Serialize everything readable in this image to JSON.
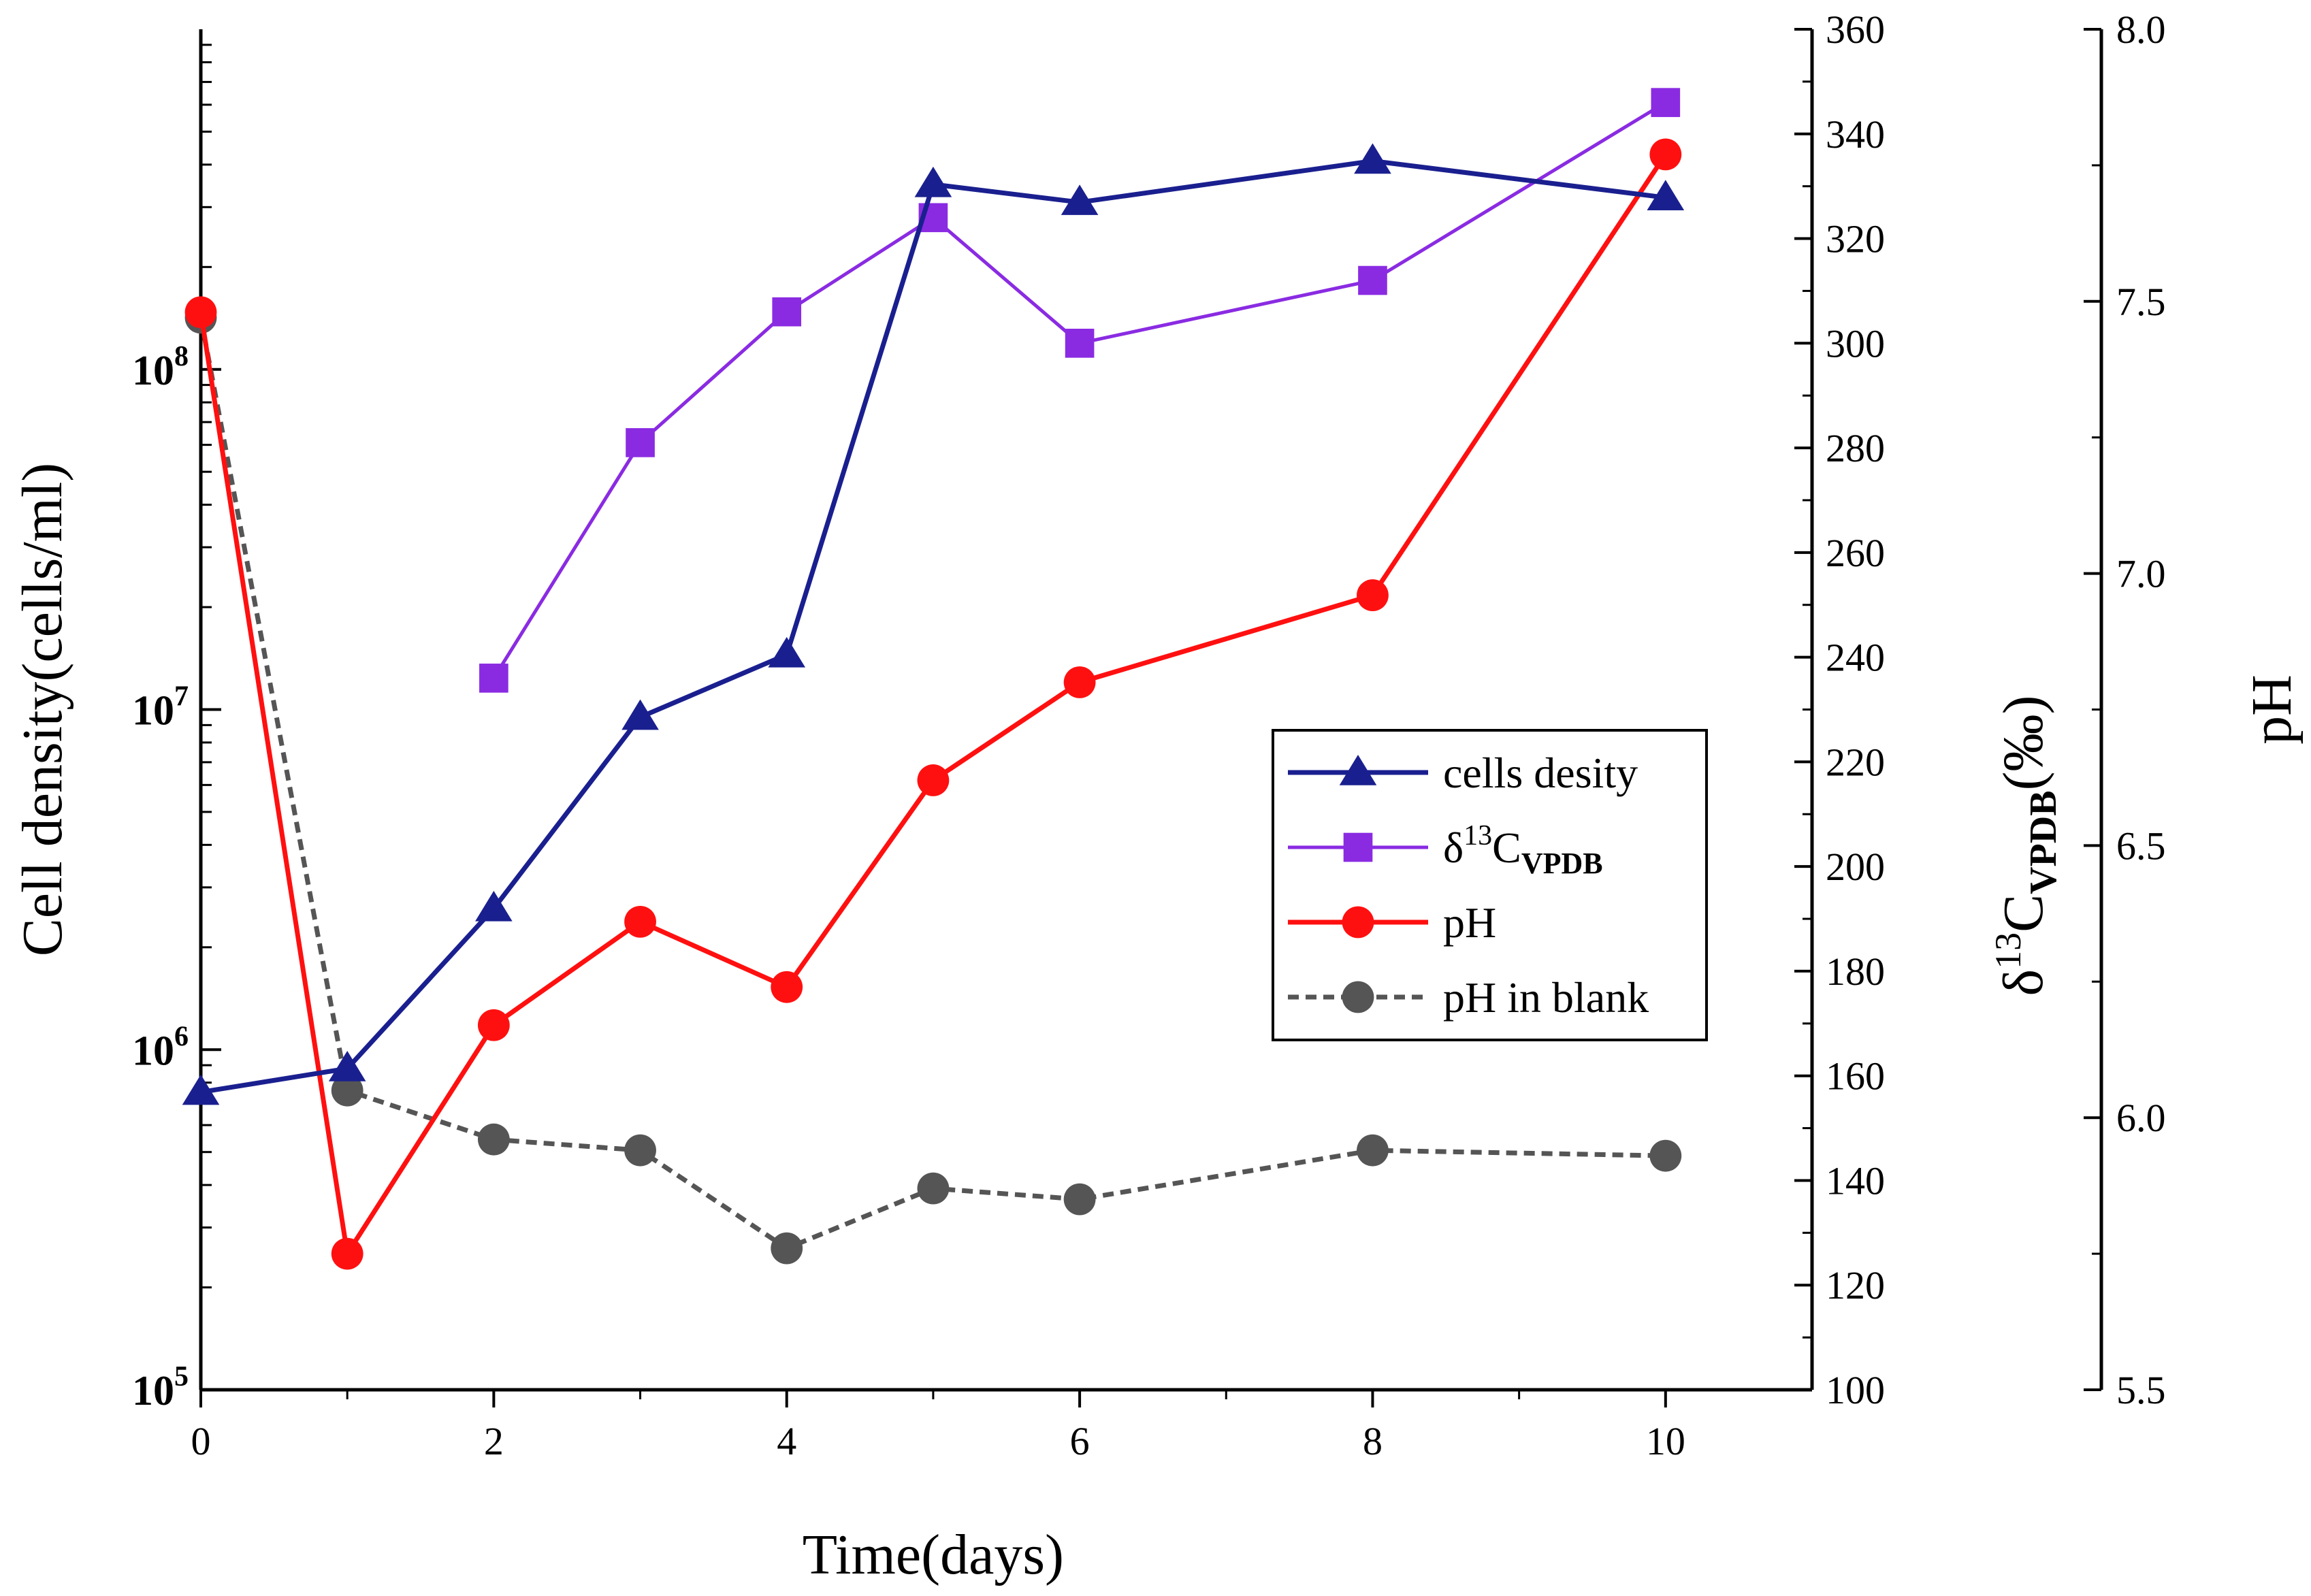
{
  "chart_data": {
    "type": "line",
    "x_axis": {
      "label": "Time(days)",
      "range": [
        0,
        11
      ],
      "ticks": [
        0,
        2,
        4,
        6,
        8,
        10
      ],
      "tick_labels": [
        "0",
        "2",
        "4",
        "6",
        "8",
        "10"
      ]
    },
    "y_axes": {
      "cell_density": {
        "label": "Cell density(cells/ml)",
        "scale": "log",
        "range": [
          100000,
          1000000000
        ],
        "ticks": [
          {
            "value": 100000,
            "base": "10",
            "exp": "5"
          },
          {
            "value": 1000000,
            "base": "10",
            "exp": "6"
          },
          {
            "value": 10000000,
            "base": "10",
            "exp": "7"
          },
          {
            "value": 100000000,
            "base": "10",
            "exp": "8"
          }
        ]
      },
      "delta13c": {
        "label_parts": {
          "delta": "δ",
          "sup": "13",
          "main": "C",
          "sub": "VPDB",
          "unit": "(‰)"
        },
        "range": [
          100,
          360
        ],
        "ticks": [
          100,
          120,
          140,
          160,
          180,
          200,
          220,
          240,
          260,
          280,
          300,
          320,
          340,
          360
        ],
        "tick_labels": [
          "100",
          "120",
          "140",
          "160",
          "180",
          "200",
          "220",
          "240",
          "260",
          "280",
          "300",
          "320",
          "340",
          "360"
        ]
      },
      "ph": {
        "label": "pH",
        "range": [
          5.5,
          8.0
        ],
        "ticks": [
          5.5,
          6.0,
          6.5,
          7.0,
          7.5,
          8.0
        ],
        "tick_labels": [
          "5.5",
          "6.0",
          "6.5",
          "7.0",
          "7.5",
          "8.0"
        ]
      }
    },
    "series": [
      {
        "name": "cells desity",
        "axis": "cell_density",
        "color": "#1a1f8f",
        "marker": "triangle",
        "dashed": false,
        "x": [
          0,
          1,
          2,
          3,
          4,
          5,
          6,
          8,
          10
        ],
        "y": [
          750000,
          880000,
          2600000,
          9500000,
          14500000,
          350000000,
          310000000,
          410000000,
          320000000
        ]
      },
      {
        "name_parts": {
          "delta": "δ",
          "sup": "13",
          "main": "C",
          "sub": "VPDB"
        },
        "axis": "delta13c",
        "color": "#8a2be2",
        "marker": "square",
        "dashed": false,
        "x": [
          2,
          3,
          4,
          5,
          6,
          8,
          10
        ],
        "y": [
          236,
          281,
          306,
          324,
          300,
          312,
          346
        ]
      },
      {
        "name": "pH",
        "axis": "ph",
        "color": "#ff1010",
        "marker": "circle",
        "dashed": false,
        "x": [
          0,
          1,
          2,
          3,
          4,
          5,
          6,
          8,
          10
        ],
        "y": [
          7.48,
          5.75,
          6.17,
          6.36,
          6.24,
          6.62,
          6.8,
          6.96,
          7.77
        ]
      },
      {
        "name": "pH in blank",
        "axis": "ph",
        "color": "#555555",
        "marker": "circle",
        "dashed": true,
        "x": [
          0,
          1,
          2,
          3,
          4,
          5,
          6,
          8,
          10
        ],
        "y": [
          7.47,
          6.05,
          5.96,
          5.94,
          5.76,
          5.87,
          5.85,
          5.94,
          5.93
        ]
      }
    ],
    "legend": {
      "position": "center-right"
    }
  }
}
